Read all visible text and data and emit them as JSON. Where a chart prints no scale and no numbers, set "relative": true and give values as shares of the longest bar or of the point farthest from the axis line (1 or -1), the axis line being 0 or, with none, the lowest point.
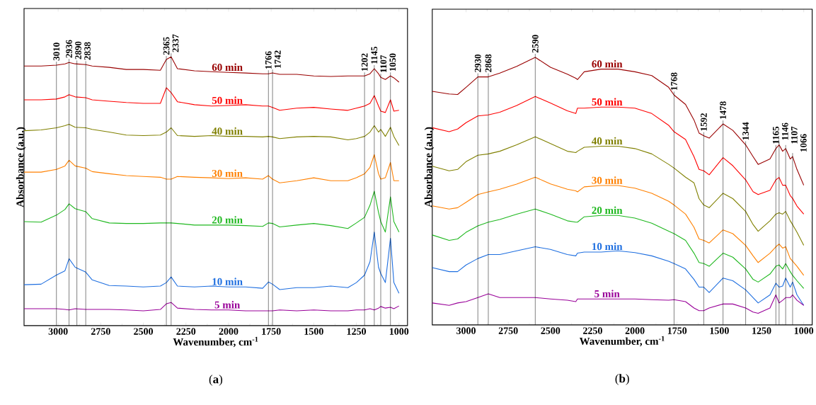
{
  "chart_data": [
    {
      "type": "line",
      "relative": true,
      "xlabel": "Wavenumber, cm$^{-1}$",
      "ylabel": "Absorbance (a.u.)",
      "xlim": [
        3200,
        950
      ],
      "xticks": [
        3000,
        2750,
        2500,
        2250,
        2000,
        1750,
        1500,
        1250,
        1000
      ],
      "x": [
        3200,
        3100,
        3010,
        2960,
        2936,
        2900,
        2838,
        2800,
        2700,
        2600,
        2500,
        2400,
        2365,
        2337,
        2300,
        2200,
        2100,
        2000,
        1900,
        1800,
        1766,
        1742,
        1700,
        1600,
        1500,
        1400,
        1300,
        1250,
        1202,
        1170,
        1145,
        1120,
        1107,
        1080,
        1050,
        1030,
        1000
      ],
      "series": [
        {
          "name": "60 min",
          "color": "#990000",
          "values": [
            0.966,
            0.966,
            0.969,
            0.974,
            0.979,
            0.974,
            0.971,
            0.966,
            0.961,
            0.953,
            0.953,
            0.95,
            0.99,
            1.0,
            0.956,
            0.948,
            0.945,
            0.942,
            0.94,
            0.937,
            0.937,
            0.94,
            0.935,
            0.935,
            0.929,
            0.927,
            0.929,
            0.929,
            0.929,
            0.937,
            0.956,
            0.937,
            0.924,
            0.916,
            0.929,
            0.922,
            0.906
          ]
        },
        {
          "name": "50 min",
          "color": "#ff0000",
          "values": [
            0.84,
            0.84,
            0.843,
            0.851,
            0.859,
            0.851,
            0.848,
            0.84,
            0.835,
            0.83,
            0.827,
            0.827,
            0.885,
            0.867,
            0.833,
            0.822,
            0.817,
            0.819,
            0.822,
            0.817,
            0.817,
            0.812,
            0.801,
            0.809,
            0.812,
            0.806,
            0.801,
            0.809,
            0.817,
            0.827,
            0.856,
            0.817,
            0.798,
            0.793,
            0.84,
            0.798,
            0.801
          ]
        },
        {
          "name": "40 min",
          "color": "#808000",
          "values": [
            0.725,
            0.728,
            0.736,
            0.744,
            0.749,
            0.738,
            0.736,
            0.73,
            0.72,
            0.709,
            0.707,
            0.709,
            0.72,
            0.736,
            0.707,
            0.704,
            0.707,
            0.704,
            0.704,
            0.702,
            0.704,
            0.702,
            0.696,
            0.702,
            0.704,
            0.702,
            0.691,
            0.696,
            0.704,
            0.72,
            0.744,
            0.72,
            0.73,
            0.704,
            0.738,
            0.704,
            0.67
          ]
        },
        {
          "name": "30 min",
          "color": "#ff8000",
          "values": [
            0.571,
            0.571,
            0.581,
            0.594,
            0.615,
            0.594,
            0.586,
            0.573,
            0.565,
            0.558,
            0.555,
            0.552,
            0.545,
            0.545,
            0.555,
            0.552,
            0.55,
            0.547,
            0.55,
            0.545,
            0.558,
            0.545,
            0.531,
            0.539,
            0.55,
            0.539,
            0.539,
            0.55,
            0.565,
            0.589,
            0.636,
            0.565,
            0.545,
            0.55,
            0.607,
            0.539,
            0.539
          ]
        },
        {
          "name": "20 min",
          "color": "#1fb81f",
          "values": [
            0.387,
            0.385,
            0.411,
            0.432,
            0.453,
            0.435,
            0.424,
            0.398,
            0.382,
            0.38,
            0.38,
            0.382,
            0.382,
            0.382,
            0.38,
            0.374,
            0.374,
            0.374,
            0.372,
            0.369,
            0.382,
            0.38,
            0.367,
            0.374,
            0.38,
            0.372,
            0.361,
            0.382,
            0.403,
            0.448,
            0.5,
            0.421,
            0.387,
            0.348,
            0.479,
            0.387,
            0.348
          ]
        },
        {
          "name": "10 min",
          "color": "#1f6fe0",
          "values": [
            0.152,
            0.154,
            0.188,
            0.204,
            0.249,
            0.217,
            0.199,
            0.17,
            0.149,
            0.147,
            0.144,
            0.147,
            0.16,
            0.181,
            0.147,
            0.144,
            0.147,
            0.144,
            0.144,
            0.139,
            0.162,
            0.154,
            0.134,
            0.141,
            0.141,
            0.147,
            0.141,
            0.16,
            0.188,
            0.238,
            0.348,
            0.217,
            0.194,
            0.16,
            0.325,
            0.16,
            0.12
          ]
        },
        {
          "name": "5 min",
          "color": "#990099",
          "values": [
            0.063,
            0.063,
            0.063,
            0.06,
            0.058,
            0.063,
            0.06,
            0.06,
            0.06,
            0.058,
            0.055,
            0.06,
            0.081,
            0.086,
            0.065,
            0.06,
            0.058,
            0.058,
            0.055,
            0.055,
            0.055,
            0.055,
            0.058,
            0.055,
            0.058,
            0.055,
            0.055,
            0.058,
            0.058,
            0.063,
            0.058,
            0.065,
            0.071,
            0.065,
            0.068,
            0.063,
            0.073
          ]
        }
      ],
      "ref_lines": [
        {
          "axis": "x",
          "value": 3010,
          "label": "3010"
        },
        {
          "axis": "x",
          "value": 2936,
          "label": "2936"
        },
        {
          "axis": "x",
          "value": 2890,
          "label": "2890"
        },
        {
          "axis": "x",
          "value": 2838,
          "label": "2838"
        },
        {
          "axis": "x",
          "value": 2365,
          "label": "2365"
        },
        {
          "axis": "x",
          "value": 2337,
          "label": "2337"
        },
        {
          "axis": "x",
          "value": 1766,
          "label": "1766"
        },
        {
          "axis": "x",
          "value": 1742,
          "label": "1742"
        },
        {
          "axis": "x",
          "value": 1202,
          "label": "1202"
        },
        {
          "axis": "x",
          "value": 1145,
          "label": "1145"
        },
        {
          "axis": "x",
          "value": 1107,
          "label": "1107"
        },
        {
          "axis": "x",
          "value": 1050,
          "label": "1050"
        }
      ],
      "annotations": [
        "(**a**)"
      ]
    },
    {
      "type": "line",
      "relative": true,
      "xlabel": "Wavenumber, cm$^{-1}$",
      "ylabel": "Absorbance (a.u.)",
      "xlim": [
        3200,
        950
      ],
      "xticks": [
        3000,
        2750,
        2500,
        2250,
        2000,
        1750,
        1500,
        1250,
        1000
      ],
      "x": [
        3200,
        3100,
        3050,
        3000,
        2930,
        2868,
        2800,
        2700,
        2590,
        2500,
        2400,
        2350,
        2340,
        2300,
        2200,
        2100,
        2000,
        1900,
        1800,
        1768,
        1700,
        1650,
        1620,
        1592,
        1560,
        1478,
        1420,
        1344,
        1300,
        1270,
        1200,
        1165,
        1146,
        1125,
        1107,
        1080,
        1066,
        1040,
        1000
      ],
      "series": [
        {
          "name": "60 min",
          "color": "#990000",
          "values": [
            0.873,
            0.863,
            0.861,
            0.888,
            0.927,
            0.927,
            0.941,
            0.966,
            1.0,
            0.963,
            0.937,
            0.922,
            0.917,
            0.946,
            0.956,
            0.956,
            0.946,
            0.932,
            0.888,
            0.859,
            0.824,
            0.766,
            0.717,
            0.707,
            0.698,
            0.751,
            0.727,
            0.673,
            0.629,
            0.6,
            0.62,
            0.659,
            0.673,
            0.649,
            0.659,
            0.62,
            0.629,
            0.581,
            0.522
          ]
        },
        {
          "name": "50 min",
          "color": "#ff0000",
          "values": [
            0.737,
            0.722,
            0.732,
            0.756,
            0.781,
            0.785,
            0.795,
            0.82,
            0.854,
            0.829,
            0.8,
            0.79,
            0.81,
            0.81,
            0.814,
            0.814,
            0.81,
            0.79,
            0.746,
            0.722,
            0.693,
            0.629,
            0.581,
            0.576,
            0.561,
            0.625,
            0.595,
            0.542,
            0.498,
            0.487,
            0.503,
            0.542,
            0.551,
            0.522,
            0.522,
            0.483,
            0.473,
            0.444,
            0.414
          ]
        },
        {
          "name": "40 min",
          "color": "#808000",
          "values": [
            0.593,
            0.576,
            0.581,
            0.61,
            0.634,
            0.639,
            0.649,
            0.673,
            0.703,
            0.678,
            0.649,
            0.644,
            0.649,
            0.664,
            0.668,
            0.668,
            0.659,
            0.639,
            0.6,
            0.586,
            0.552,
            0.531,
            0.472,
            0.448,
            0.438,
            0.492,
            0.472,
            0.424,
            0.375,
            0.35,
            0.389,
            0.414,
            0.419,
            0.414,
            0.424,
            0.389,
            0.375,
            0.346,
            0.297
          ]
        },
        {
          "name": "30 min",
          "color": "#ff8000",
          "values": [
            0.445,
            0.433,
            0.438,
            0.458,
            0.487,
            0.497,
            0.507,
            0.526,
            0.552,
            0.527,
            0.507,
            0.501,
            0.497,
            0.516,
            0.521,
            0.521,
            0.511,
            0.492,
            0.462,
            0.448,
            0.414,
            0.365,
            0.321,
            0.316,
            0.306,
            0.355,
            0.341,
            0.297,
            0.258,
            0.233,
            0.268,
            0.292,
            0.302,
            0.287,
            0.292,
            0.248,
            0.238,
            0.219,
            0.185
          ]
        },
        {
          "name": "20 min",
          "color": "#1fb81f",
          "values": [
            0.336,
            0.316,
            0.321,
            0.346,
            0.37,
            0.384,
            0.394,
            0.414,
            0.433,
            0.414,
            0.389,
            0.384,
            0.384,
            0.404,
            0.409,
            0.409,
            0.399,
            0.38,
            0.35,
            0.341,
            0.316,
            0.268,
            0.233,
            0.229,
            0.219,
            0.268,
            0.253,
            0.209,
            0.17,
            0.16,
            0.19,
            0.219,
            0.224,
            0.209,
            0.229,
            0.199,
            0.185,
            0.165,
            0.136
          ]
        },
        {
          "name": "10 min",
          "color": "#1f6fe0",
          "values": [
            0.214,
            0.199,
            0.199,
            0.224,
            0.248,
            0.263,
            0.263,
            0.277,
            0.292,
            0.282,
            0.263,
            0.258,
            0.268,
            0.272,
            0.272,
            0.277,
            0.27,
            0.258,
            0.238,
            0.229,
            0.209,
            0.17,
            0.141,
            0.141,
            0.121,
            0.175,
            0.165,
            0.131,
            0.102,
            0.082,
            0.112,
            0.156,
            0.141,
            0.145,
            0.175,
            0.141,
            0.16,
            0.112,
            0.073
          ]
        },
        {
          "name": "5 min",
          "color": "#990099",
          "values": [
            0.082,
            0.073,
            0.082,
            0.087,
            0.102,
            0.116,
            0.102,
            0.102,
            0.102,
            0.097,
            0.092,
            0.087,
            0.097,
            0.097,
            0.097,
            0.097,
            0.097,
            0.094,
            0.092,
            0.094,
            0.087,
            0.063,
            0.053,
            0.053,
            0.063,
            0.078,
            0.078,
            0.063,
            0.048,
            0.043,
            0.063,
            0.112,
            0.082,
            0.092,
            0.102,
            0.102,
            0.112,
            0.092,
            0.073
          ]
        }
      ],
      "ref_lines": [
        {
          "axis": "x",
          "value": 2930,
          "label": "2930"
        },
        {
          "axis": "x",
          "value": 2868,
          "label": "2868"
        },
        {
          "axis": "x",
          "value": 2590,
          "label": "2590"
        },
        {
          "axis": "x",
          "value": 1768,
          "label": "1768"
        },
        {
          "axis": "x",
          "value": 1592,
          "label": "1592"
        },
        {
          "axis": "x",
          "value": 1478,
          "label": "1478"
        },
        {
          "axis": "x",
          "value": 1344,
          "label": "1344"
        },
        {
          "axis": "x",
          "value": 1165,
          "label": "1165"
        },
        {
          "axis": "x",
          "value": 1146,
          "label": "1146"
        },
        {
          "axis": "x",
          "value": 1107,
          "label": "1107"
        },
        {
          "axis": "x",
          "value": 1066,
          "label": "1066"
        }
      ],
      "annotations": [
        "(**b**)"
      ]
    }
  ]
}
